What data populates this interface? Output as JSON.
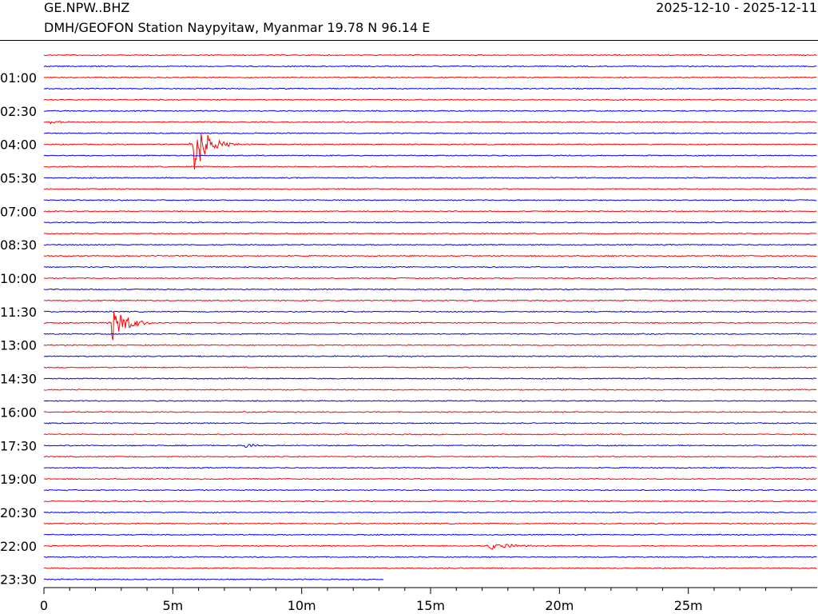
{
  "header": {
    "station_code": "GE.NPW..BHZ",
    "date_range": "2025-12-10 - 2025-12-11",
    "station_desc": "DMH/GEOFON Station Naypyitaw, Myanmar  19.78 N 96.14 E"
  },
  "chart_data": {
    "type": "line",
    "title": "",
    "xlabel": "",
    "ylabel": "",
    "xlim": [
      0,
      30
    ],
    "x_unit": "minutes",
    "x_ticks": [
      {
        "value": 0,
        "label": "0"
      },
      {
        "value": 5,
        "label": "5m"
      },
      {
        "value": 10,
        "label": "10m"
      },
      {
        "value": 15,
        "label": "15m"
      },
      {
        "value": 20,
        "label": "20m"
      },
      {
        "value": 25,
        "label": "25m"
      }
    ],
    "x_minor_ticks": [
      1,
      2,
      3,
      4,
      6,
      7,
      8,
      9,
      11,
      12,
      13,
      14,
      16,
      17,
      18,
      19,
      21,
      22,
      23,
      24,
      26,
      27,
      28,
      29
    ],
    "row_minutes": 30,
    "colors": [
      "#ff0000",
      "#0000ff"
    ],
    "grid": false,
    "y_ticks": [
      {
        "row": 2,
        "label": "01:00"
      },
      {
        "row": 5,
        "label": "02:30"
      },
      {
        "row": 8,
        "label": "04:00"
      },
      {
        "row": 11,
        "label": "05:30"
      },
      {
        "row": 14,
        "label": "07:00"
      },
      {
        "row": 17,
        "label": "08:30"
      },
      {
        "row": 20,
        "label": "10:00"
      },
      {
        "row": 23,
        "label": "11:30"
      },
      {
        "row": 26,
        "label": "13:00"
      },
      {
        "row": 29,
        "label": "14:30"
      },
      {
        "row": 32,
        "label": "16:00"
      },
      {
        "row": 35,
        "label": "17:30"
      },
      {
        "row": 38,
        "label": "19:00"
      },
      {
        "row": 41,
        "label": "20:30"
      },
      {
        "row": 44,
        "label": "22:00"
      },
      {
        "row": 47,
        "label": "23:30"
      }
    ],
    "rows": 48,
    "last_row_end_minute": 13.2,
    "events": [
      {
        "row": 8,
        "minute": 5.8,
        "amplitude": 1.0,
        "duration_min": 1.8
      },
      {
        "row": 24,
        "minute": 2.6,
        "amplitude": 0.75,
        "duration_min": 1.8
      },
      {
        "row": 35,
        "minute": 7.8,
        "amplitude": 0.12,
        "duration_min": 1.0
      },
      {
        "row": 44,
        "minute": 17.2,
        "amplitude": 0.15,
        "duration_min": 2.5
      },
      {
        "row": 6,
        "minute": 0.2,
        "amplitude": 0.08,
        "duration_min": 1.5
      }
    ]
  }
}
